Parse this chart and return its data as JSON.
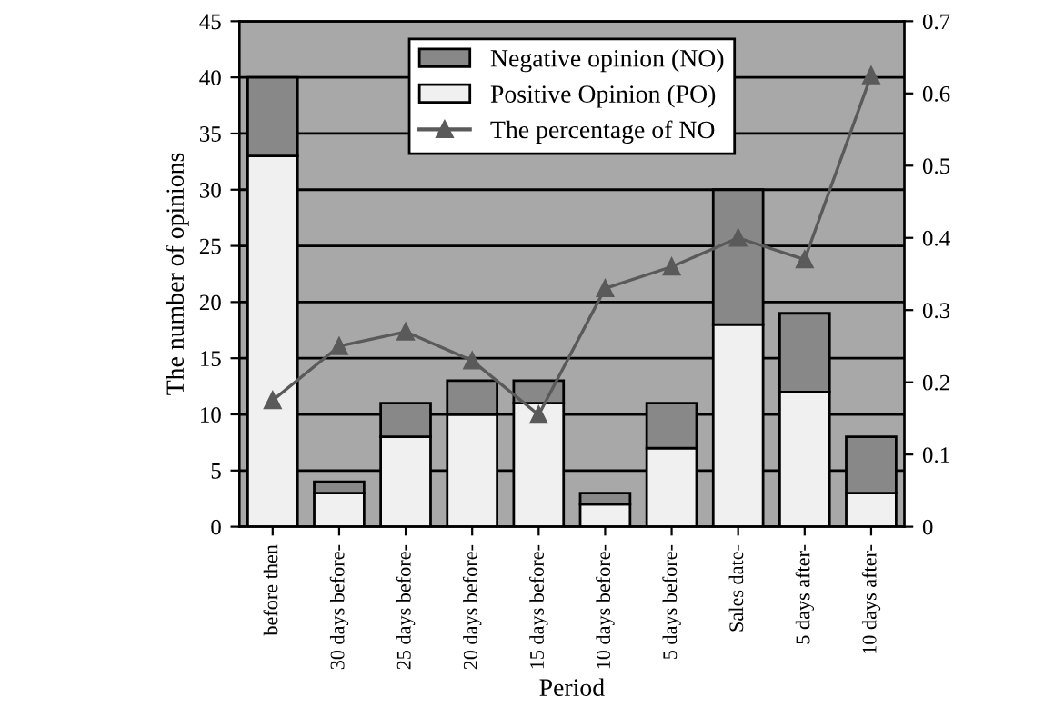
{
  "chart_data": {
    "type": "bar",
    "stacked": true,
    "xlabel": "Period",
    "ylabel": "The number of opinions",
    "categories": [
      "before then",
      "30 days before-",
      "25 days before-",
      "20 days before-",
      "15 days before-",
      "10 days before-",
      "5 days before-",
      "Sales date-",
      "5 days after-",
      "10 days after-"
    ],
    "series": [
      {
        "name": "Positive Opinion (PO)",
        "color": "#f0f0f0",
        "values": [
          33,
          3,
          8,
          10,
          11,
          2,
          7,
          18,
          12,
          3
        ]
      },
      {
        "name": "Negative opinion (NO)",
        "color": "#888888",
        "values": [
          7,
          1,
          3,
          3,
          2,
          1,
          4,
          12,
          7,
          5
        ]
      },
      {
        "name": "The percentage of NO",
        "type": "line",
        "axis": "y2",
        "color": "#5a5a5a",
        "marker": "triangle",
        "values": [
          0.175,
          0.25,
          0.27,
          0.23,
          0.155,
          0.33,
          0.36,
          0.4,
          0.37,
          0.625
        ]
      }
    ],
    "ylim": [
      0,
      45
    ],
    "yticks": [
      0,
      5,
      10,
      15,
      20,
      25,
      30,
      35,
      40,
      45
    ],
    "y2lim": [
      0,
      0.7
    ],
    "y2ticks": [
      0,
      0.1,
      0.2,
      0.3,
      0.4,
      0.5,
      0.6,
      0.7
    ],
    "grid": "y",
    "legend": "top"
  }
}
